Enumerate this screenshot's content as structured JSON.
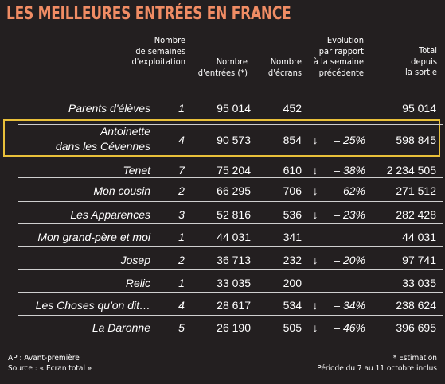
{
  "title": "LES MEILLEURES ENTRÉES EN FRANCE",
  "headers": {
    "weeks": "Nombre\nde semaines\nd'exploitation",
    "entries": "Nombre\nd'entrées (*)",
    "screens": "Nombre\nd'écrans",
    "evolution": "Evolution\npar rapport\nà la semaine\nprécédente",
    "total": "Total\ndepuis\nla sortie"
  },
  "rows": [
    {
      "film": "Parents d'élèves",
      "weeks": "1",
      "entries": "95 014",
      "screens": "452",
      "arrow": "",
      "evo": "",
      "total": "95 014"
    },
    {
      "film": "Antoinette\ndans les Cévennes",
      "weeks": "4",
      "entries": "90 573",
      "screens": "854",
      "arrow": "↓",
      "evo": "– 25%",
      "total": "598 845"
    },
    {
      "film": "Tenet",
      "weeks": "7",
      "entries": "75 204",
      "screens": "610",
      "arrow": "↓",
      "evo": "– 38%",
      "total": "2 234 505"
    },
    {
      "film": "Mon cousin",
      "weeks": "2",
      "entries": "66 295",
      "screens": "706",
      "arrow": "↓",
      "evo": "– 62%",
      "total": "271 512"
    },
    {
      "film": "Les Apparences",
      "weeks": "3",
      "entries": "52 816",
      "screens": "536",
      "arrow": "↓",
      "evo": "– 23%",
      "total": "282 428"
    },
    {
      "film": "Mon grand-père et moi",
      "weeks": "1",
      "entries": "44 031",
      "screens": "341",
      "arrow": "",
      "evo": "",
      "total": "44 031"
    },
    {
      "film": "Josep",
      "weeks": "2",
      "entries": "36 713",
      "screens": "232",
      "arrow": "↓",
      "evo": "– 20%",
      "total": "97 741"
    },
    {
      "film": "Relic",
      "weeks": "1",
      "entries": "33 035",
      "screens": "200",
      "arrow": "",
      "evo": "",
      "total": "33 035"
    },
    {
      "film": "Les Choses qu'on dit…",
      "weeks": "4",
      "entries": "28 617",
      "screens": "534",
      "arrow": "↓",
      "evo": "– 34%",
      "total": "238 624"
    },
    {
      "film": "La Daronne",
      "weeks": "5",
      "entries": "26 190",
      "screens": "505",
      "arrow": "↓",
      "evo": "– 46%",
      "total": "396 695"
    }
  ],
  "footer": {
    "left": "AP : Avant-première\nSource : « Ecran total »",
    "right": "* Estimation\nPériode du 7 au 11 octobre inclus"
  },
  "colors": {
    "background": "#231f20",
    "title": "#f08c64",
    "highlight": "#e9c03a",
    "rule": "#cfcfcf"
  }
}
